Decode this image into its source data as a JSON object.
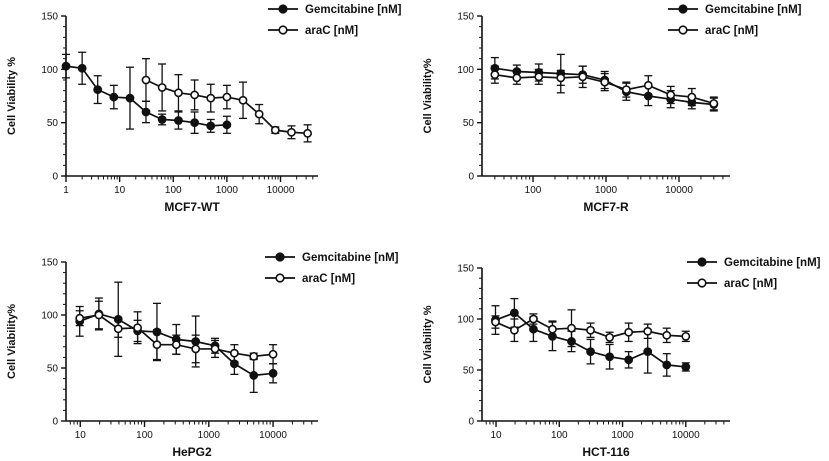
{
  "chart_data": [
    {
      "type": "line",
      "xlabel": "MCF7-WT",
      "ylabel": "Cell Viability %",
      "x_scale": "log",
      "xlim": [
        1,
        50000
      ],
      "ylim": [
        0,
        150
      ],
      "x_ticks": [
        1,
        10,
        100,
        1000,
        10000
      ],
      "x_tick_labels": [
        "1",
        "10",
        "100",
        "1000",
        "10000"
      ],
      "y_ticks": [
        0,
        50,
        100,
        150
      ],
      "y_tick_labels": [
        "0",
        "50",
        "100",
        "150"
      ],
      "legend": "top-right",
      "series": [
        {
          "name": "Gemcitabine [nM]",
          "marker": "filled",
          "points": [
            {
              "x": 1,
              "y": 103,
              "err": 11
            },
            {
              "x": 2,
              "y": 101,
              "err": 15
            },
            {
              "x": 3.9,
              "y": 81,
              "err": 13
            },
            {
              "x": 7.8,
              "y": 74,
              "err": 11
            },
            {
              "x": 15.6,
              "y": 73,
              "err": 29
            },
            {
              "x": 31,
              "y": 60,
              "err": 10
            },
            {
              "x": 62,
              "y": 53,
              "err": 5
            },
            {
              "x": 125,
              "y": 52,
              "err": 8
            },
            {
              "x": 250,
              "y": 50,
              "err": 10
            },
            {
              "x": 500,
              "y": 47,
              "err": 6
            },
            {
              "x": 1000,
              "y": 48,
              "err": 8
            }
          ]
        },
        {
          "name": "araC [nM]",
          "marker": "open",
          "points": [
            {
              "x": 31,
              "y": 90,
              "err": 20
            },
            {
              "x": 62,
              "y": 83,
              "err": 22
            },
            {
              "x": 125,
              "y": 78,
              "err": 17
            },
            {
              "x": 250,
              "y": 76,
              "err": 14
            },
            {
              "x": 500,
              "y": 73,
              "err": 13
            },
            {
              "x": 1000,
              "y": 74,
              "err": 11
            },
            {
              "x": 2000,
              "y": 71,
              "err": 17
            },
            {
              "x": 4000,
              "y": 58,
              "err": 9
            },
            {
              "x": 8000,
              "y": 43,
              "err": 3
            },
            {
              "x": 16000,
              "y": 41,
              "err": 6
            },
            {
              "x": 32000,
              "y": 40,
              "err": 8
            }
          ]
        }
      ]
    },
    {
      "type": "line",
      "xlabel": "MCF7-R",
      "ylabel": "Cell Viability%",
      "x_scale": "log",
      "xlim": [
        20,
        50000
      ],
      "ylim": [
        0,
        150
      ],
      "x_ticks": [
        100,
        1000,
        10000
      ],
      "x_tick_labels": [
        "100",
        "1000",
        "10000"
      ],
      "y_ticks": [
        0,
        50,
        100,
        150
      ],
      "y_tick_labels": [
        "0",
        "50",
        "100",
        "150"
      ],
      "legend": "top-right",
      "series": [
        {
          "name": "Gemcitabine [nM]",
          "marker": "filled",
          "points": [
            {
              "x": 30,
              "y": 101,
              "err": 10
            },
            {
              "x": 60,
              "y": 98,
              "err": 6
            },
            {
              "x": 120,
              "y": 97,
              "err": 8
            },
            {
              "x": 240,
              "y": 96,
              "err": 18
            },
            {
              "x": 480,
              "y": 95,
              "err": 8
            },
            {
              "x": 960,
              "y": 90,
              "err": 8
            },
            {
              "x": 1900,
              "y": 79,
              "err": 8
            },
            {
              "x": 3800,
              "y": 75,
              "err": 9
            },
            {
              "x": 7700,
              "y": 72,
              "err": 8
            },
            {
              "x": 15000,
              "y": 69,
              "err": 6
            },
            {
              "x": 30000,
              "y": 67,
              "err": 6
            }
          ]
        },
        {
          "name": "araC [nM]",
          "marker": "open",
          "points": [
            {
              "x": 30,
              "y": 95,
              "err": 8
            },
            {
              "x": 60,
              "y": 92,
              "err": 6
            },
            {
              "x": 120,
              "y": 93,
              "err": 7
            },
            {
              "x": 240,
              "y": 92,
              "err": 7
            },
            {
              "x": 480,
              "y": 93,
              "err": 10
            },
            {
              "x": 960,
              "y": 88,
              "err": 8
            },
            {
              "x": 1900,
              "y": 81,
              "err": 7
            },
            {
              "x": 3800,
              "y": 85,
              "err": 9
            },
            {
              "x": 7700,
              "y": 76,
              "err": 8
            },
            {
              "x": 15000,
              "y": 74,
              "err": 8
            },
            {
              "x": 30000,
              "y": 68,
              "err": 6
            }
          ]
        }
      ]
    },
    {
      "type": "line",
      "xlabel": "HePG2",
      "ylabel": "Cell Viability%",
      "x_scale": "log",
      "xlim": [
        6,
        50000
      ],
      "ylim": [
        0,
        150
      ],
      "x_ticks": [
        10,
        100,
        1000,
        10000
      ],
      "x_tick_labels": [
        "10",
        "100",
        "1000",
        "10000"
      ],
      "y_ticks": [
        0,
        50,
        100,
        150
      ],
      "y_tick_labels": [
        "0",
        "50",
        "100",
        "150"
      ],
      "legend": "top-right",
      "series": [
        {
          "name": "Gemcitabine [nM]",
          "marker": "filled",
          "points": [
            {
              "x": 9.8,
              "y": 94,
              "err": 14
            },
            {
              "x": 19.5,
              "y": 101,
              "err": 15
            },
            {
              "x": 39,
              "y": 96,
              "err": 35
            },
            {
              "x": 78,
              "y": 85,
              "err": 10
            },
            {
              "x": 156,
              "y": 84,
              "err": 27
            },
            {
              "x": 312,
              "y": 77,
              "err": 14
            },
            {
              "x": 625,
              "y": 75,
              "err": 24
            },
            {
              "x": 1250,
              "y": 71,
              "err": 7
            },
            {
              "x": 2500,
              "y": 54,
              "err": 10
            },
            {
              "x": 5000,
              "y": 43,
              "err": 16
            },
            {
              "x": 10000,
              "y": 45,
              "err": 9
            }
          ]
        },
        {
          "name": "araC [nM]",
          "marker": "open",
          "points": [
            {
              "x": 9.8,
              "y": 97,
              "err": 7
            },
            {
              "x": 19.5,
              "y": 100,
              "err": 13
            },
            {
              "x": 39,
              "y": 87,
              "err": 8
            },
            {
              "x": 78,
              "y": 88,
              "err": 15
            },
            {
              "x": 156,
              "y": 72,
              "err": 14
            },
            {
              "x": 312,
              "y": 72,
              "err": 9
            },
            {
              "x": 625,
              "y": 68,
              "err": 13
            },
            {
              "x": 1250,
              "y": 68,
              "err": 8
            },
            {
              "x": 2500,
              "y": 64,
              "err": 8
            },
            {
              "x": 5000,
              "y": 61,
              "err": 3
            },
            {
              "x": 10000,
              "y": 63,
              "err": 9
            }
          ]
        }
      ]
    },
    {
      "type": "line",
      "xlabel": "HCT-116",
      "ylabel": "Cell Viability %",
      "x_scale": "log",
      "xlim": [
        6,
        50000
      ],
      "ylim": [
        0,
        150
      ],
      "x_ticks": [
        10,
        100,
        1000,
        10000
      ],
      "x_tick_labels": [
        "10",
        "100",
        "1000",
        "10000"
      ],
      "y_ticks": [
        0,
        50,
        100,
        150
      ],
      "y_tick_labels": [
        "0",
        "50",
        "100",
        "150"
      ],
      "legend": "top-right",
      "series": [
        {
          "name": "Gemcitabine [nM]",
          "marker": "filled",
          "points": [
            {
              "x": 9.8,
              "y": 99,
              "err": 14
            },
            {
              "x": 19.5,
              "y": 106,
              "err": 14
            },
            {
              "x": 39,
              "y": 90,
              "err": 12
            },
            {
              "x": 78,
              "y": 83,
              "err": 14
            },
            {
              "x": 156,
              "y": 78,
              "err": 10
            },
            {
              "x": 312,
              "y": 68,
              "err": 12
            },
            {
              "x": 625,
              "y": 63,
              "err": 12
            },
            {
              "x": 1250,
              "y": 60,
              "err": 8
            },
            {
              "x": 2500,
              "y": 68,
              "err": 21
            },
            {
              "x": 5000,
              "y": 55,
              "err": 11
            },
            {
              "x": 10000,
              "y": 53,
              "err": 4
            }
          ]
        },
        {
          "name": "araC [nM]",
          "marker": "open",
          "points": [
            {
              "x": 9.8,
              "y": 97,
              "err": 6
            },
            {
              "x": 19.5,
              "y": 89,
              "err": 11
            },
            {
              "x": 39,
              "y": 100,
              "err": 5
            },
            {
              "x": 78,
              "y": 90,
              "err": 8
            },
            {
              "x": 156,
              "y": 91,
              "err": 18
            },
            {
              "x": 312,
              "y": 89,
              "err": 7
            },
            {
              "x": 625,
              "y": 82,
              "err": 5
            },
            {
              "x": 1250,
              "y": 87,
              "err": 9
            },
            {
              "x": 2500,
              "y": 88,
              "err": 7
            },
            {
              "x": 5000,
              "y": 84,
              "err": 7
            },
            {
              "x": 10000,
              "y": 83,
              "err": 5
            }
          ]
        }
      ]
    }
  ]
}
